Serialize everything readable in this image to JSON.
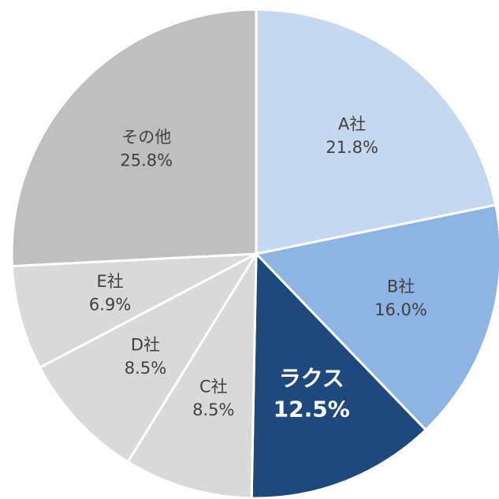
{
  "chart_data": {
    "type": "pie",
    "categories": [
      "A社",
      "B社",
      "ラクス",
      "C社",
      "D社",
      "E社",
      "その他"
    ],
    "values": [
      21.8,
      16.0,
      12.5,
      8.5,
      8.5,
      6.9,
      25.8
    ],
    "value_labels": [
      "21.8%",
      "16.0%",
      "12.5%",
      "8.5%",
      "8.5%",
      "6.9%",
      "25.8%"
    ],
    "colors": [
      "#c5d8f0",
      "#8db4e2",
      "#1f497d",
      "#d9d9d9",
      "#d9d9d9",
      "#d9d9d9",
      "#bfbfbf"
    ],
    "label_colors": [
      "#404040",
      "#404040",
      "#ffffff",
      "#404040",
      "#404040",
      "#404040",
      "#404040"
    ]
  }
}
